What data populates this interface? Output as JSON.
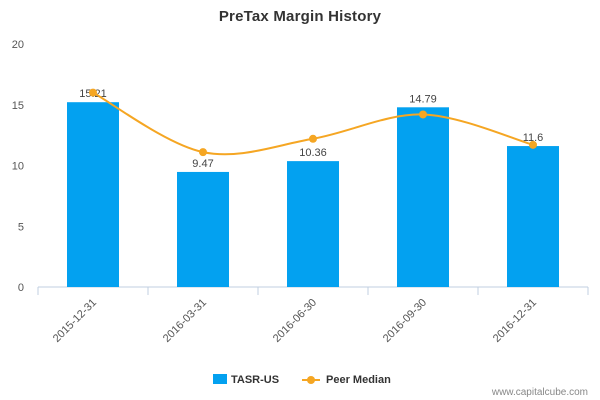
{
  "chart_data": {
    "type": "bar",
    "title": "PreTax Margin History",
    "categories": [
      "2015-12-31",
      "2016-03-31",
      "2016-06-30",
      "2016-09-30",
      "2016-12-31"
    ],
    "series": [
      {
        "name": "TASR-US",
        "type": "bar",
        "color": "#03a1f0",
        "values": [
          15.21,
          9.47,
          10.36,
          14.79,
          11.6
        ]
      },
      {
        "name": "Peer Median",
        "type": "line",
        "color": "#f5a623",
        "values": [
          16.0,
          11.1,
          12.2,
          14.2,
          11.7
        ]
      }
    ],
    "data_labels": [
      "15.21",
      "9.47",
      "10.36",
      "14.79",
      "11.6"
    ],
    "ylim": [
      0,
      20
    ],
    "yticks": [
      0,
      5,
      10,
      15,
      20
    ],
    "grid": false,
    "legend_position": "bottom"
  },
  "watermark": "www.capitalcube.com"
}
